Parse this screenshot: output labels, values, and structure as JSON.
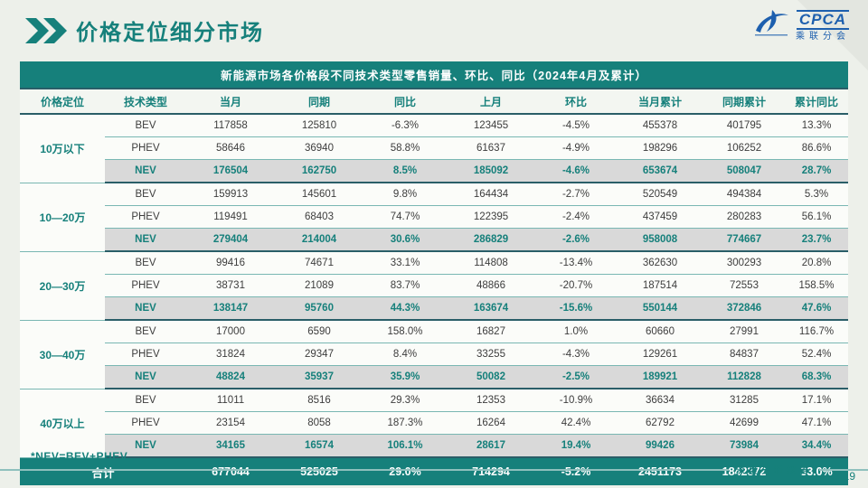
{
  "page": {
    "title": "价格定位细分市场",
    "footnote": "*NEV=BEV+PHEV",
    "footer_label": "深度分析报告",
    "page_number": "19"
  },
  "logo": {
    "name": "CPCA",
    "subtitle": "乘联分会"
  },
  "table": {
    "banner": "新能源市场各价格段不同技术类型零售销量、环比、同比（2024年4月及累计）",
    "columns": [
      "价格定位",
      "技术类型",
      "当月",
      "同期",
      "同比",
      "上月",
      "环比",
      "当月累计",
      "同期累计",
      "累计同比"
    ],
    "groups": [
      {
        "segment": "10万以下",
        "rows": [
          {
            "type": "BEV",
            "cells": [
              "117858",
              "125810",
              "-6.3%",
              "123455",
              "-4.5%",
              "455378",
              "401795",
              "13.3%"
            ]
          },
          {
            "type": "PHEV",
            "cells": [
              "58646",
              "36940",
              "58.8%",
              "61637",
              "-4.9%",
              "198296",
              "106252",
              "86.6%"
            ]
          },
          {
            "type": "NEV",
            "cells": [
              "176504",
              "162750",
              "8.5%",
              "185092",
              "-4.6%",
              "653674",
              "508047",
              "28.7%"
            ]
          }
        ]
      },
      {
        "segment": "10—20万",
        "rows": [
          {
            "type": "BEV",
            "cells": [
              "159913",
              "145601",
              "9.8%",
              "164434",
              "-2.7%",
              "520549",
              "494384",
              "5.3%"
            ]
          },
          {
            "type": "PHEV",
            "cells": [
              "119491",
              "68403",
              "74.7%",
              "122395",
              "-2.4%",
              "437459",
              "280283",
              "56.1%"
            ]
          },
          {
            "type": "NEV",
            "cells": [
              "279404",
              "214004",
              "30.6%",
              "286829",
              "-2.6%",
              "958008",
              "774667",
              "23.7%"
            ]
          }
        ]
      },
      {
        "segment": "20—30万",
        "rows": [
          {
            "type": "BEV",
            "cells": [
              "99416",
              "74671",
              "33.1%",
              "114808",
              "-13.4%",
              "362630",
              "300293",
              "20.8%"
            ]
          },
          {
            "type": "PHEV",
            "cells": [
              "38731",
              "21089",
              "83.7%",
              "48866",
              "-20.7%",
              "187514",
              "72553",
              "158.5%"
            ]
          },
          {
            "type": "NEV",
            "cells": [
              "138147",
              "95760",
              "44.3%",
              "163674",
              "-15.6%",
              "550144",
              "372846",
              "47.6%"
            ]
          }
        ]
      },
      {
        "segment": "30—40万",
        "rows": [
          {
            "type": "BEV",
            "cells": [
              "17000",
              "6590",
              "158.0%",
              "16827",
              "1.0%",
              "60660",
              "27991",
              "116.7%"
            ]
          },
          {
            "type": "PHEV",
            "cells": [
              "31824",
              "29347",
              "8.4%",
              "33255",
              "-4.3%",
              "129261",
              "84837",
              "52.4%"
            ]
          },
          {
            "type": "NEV",
            "cells": [
              "48824",
              "35937",
              "35.9%",
              "50082",
              "-2.5%",
              "189921",
              "112828",
              "68.3%"
            ]
          }
        ]
      },
      {
        "segment": "40万以上",
        "rows": [
          {
            "type": "BEV",
            "cells": [
              "11011",
              "8516",
              "29.3%",
              "12353",
              "-10.9%",
              "36634",
              "31285",
              "17.1%"
            ]
          },
          {
            "type": "PHEV",
            "cells": [
              "23154",
              "8058",
              "187.3%",
              "16264",
              "42.4%",
              "62792",
              "42699",
              "47.1%"
            ]
          },
          {
            "type": "NEV",
            "cells": [
              "34165",
              "16574",
              "106.1%",
              "28617",
              "19.4%",
              "99426",
              "73984",
              "34.4%"
            ]
          }
        ]
      }
    ],
    "total": {
      "label": "合计",
      "cells": [
        "677044",
        "525025",
        "29.0%",
        "714294",
        "-5.2%",
        "2451173",
        "1842372",
        "33.0%"
      ]
    }
  },
  "colors": {
    "teal": "#16807b",
    "dark": "#2a5e68",
    "rowline": "#79b7b3",
    "nevbg": "#d9d9d9",
    "bg": "#edf0ea",
    "cellbg": "#fbfcf9",
    "logo": "#1d5fae"
  }
}
